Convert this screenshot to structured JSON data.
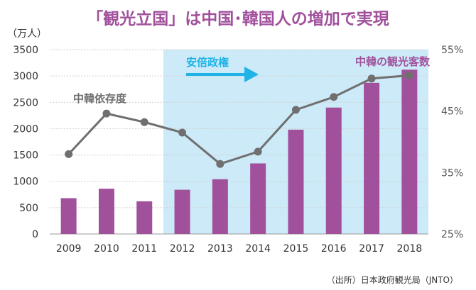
{
  "chart_data": {
    "type": "bar",
    "title": "「観光立国」は中国･韓国人の増加で実現",
    "y_unit_label": "（万人）",
    "categories": [
      "2009",
      "2010",
      "2011",
      "2012",
      "2013",
      "2014",
      "2015",
      "2016",
      "2017",
      "2018"
    ],
    "y_ticks": [
      "3500",
      "3000",
      "2500",
      "2000",
      "1500",
      "1000",
      "500",
      "0"
    ],
    "ylim": [
      0,
      3500
    ],
    "y2_ticks": [
      "55%",
      "45%",
      "35%",
      "25%"
    ],
    "y2lim": [
      25,
      55
    ],
    "grid": true,
    "series": [
      {
        "name": "中韓の観光客数",
        "type": "bar",
        "axis": "left",
        "values": [
          680,
          860,
          620,
          840,
          1040,
          1340,
          1980,
          2400,
          2870,
          3120
        ]
      },
      {
        "name": "中韓依存度",
        "type": "line",
        "axis": "right",
        "values": [
          38.0,
          44.6,
          43.2,
          41.5,
          36.4,
          38.4,
          45.2,
          47.3,
          50.3,
          50.8
        ]
      }
    ],
    "highlight": {
      "label": "安倍政権",
      "from": "2012",
      "to": "2018"
    },
    "source_note": "（出所）日本政府観光局（JNTO）",
    "colors": {
      "bar": "#a1519c",
      "line": "#6f6f6f",
      "highlight": "#cdeaf8",
      "arrow": "#1fb3e6",
      "title": "#a1519c",
      "grid": "#cfcfcf"
    }
  }
}
